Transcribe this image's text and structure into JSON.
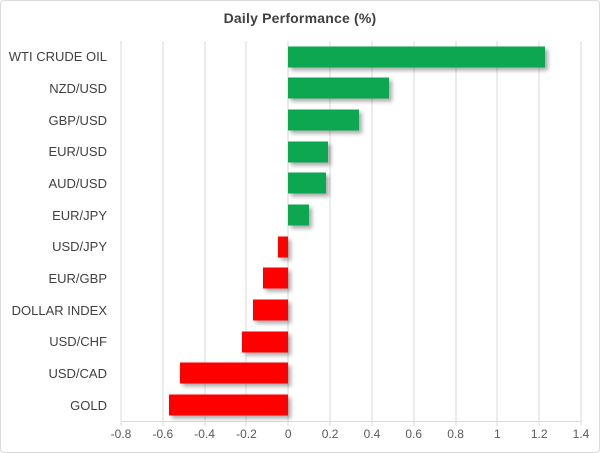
{
  "chart_data": {
    "type": "bar",
    "orientation": "horizontal",
    "title": "Daily Performance (%)",
    "categories": [
      "WTI CRUDE OIL",
      "NZD/USD",
      "GBP/USD",
      "EUR/USD",
      "AUD/USD",
      "EUR/JPY",
      "USD/JPY",
      "EUR/GBP",
      "DOLLAR INDEX",
      "USD/CHF",
      "USD/CAD",
      "GOLD"
    ],
    "values": [
      1.23,
      0.48,
      0.34,
      0.19,
      0.18,
      0.1,
      -0.05,
      -0.12,
      -0.17,
      -0.22,
      -0.52,
      -0.57
    ],
    "xlim": [
      -0.8,
      1.4
    ],
    "x_ticks": [
      -0.8,
      -0.6,
      -0.4,
      -0.2,
      0,
      0.2,
      0.4,
      0.6,
      0.8,
      1,
      1.2,
      1.4
    ],
    "x_tick_labels": [
      "-0.8",
      "-0.6",
      "-0.4",
      "-0.2",
      "0",
      "0.2",
      "0.4",
      "0.6",
      "0.8",
      "1",
      "1.2",
      "1.4"
    ],
    "grid": true,
    "legend": false,
    "xlabel": "",
    "ylabel": "",
    "colors": {
      "positive": "#0ca750",
      "negative": "#ff0000",
      "gridline": "#d9d9d9",
      "title_text": "#3f3f3f",
      "category_text": "#404040",
      "tick_text": "#595959"
    }
  }
}
